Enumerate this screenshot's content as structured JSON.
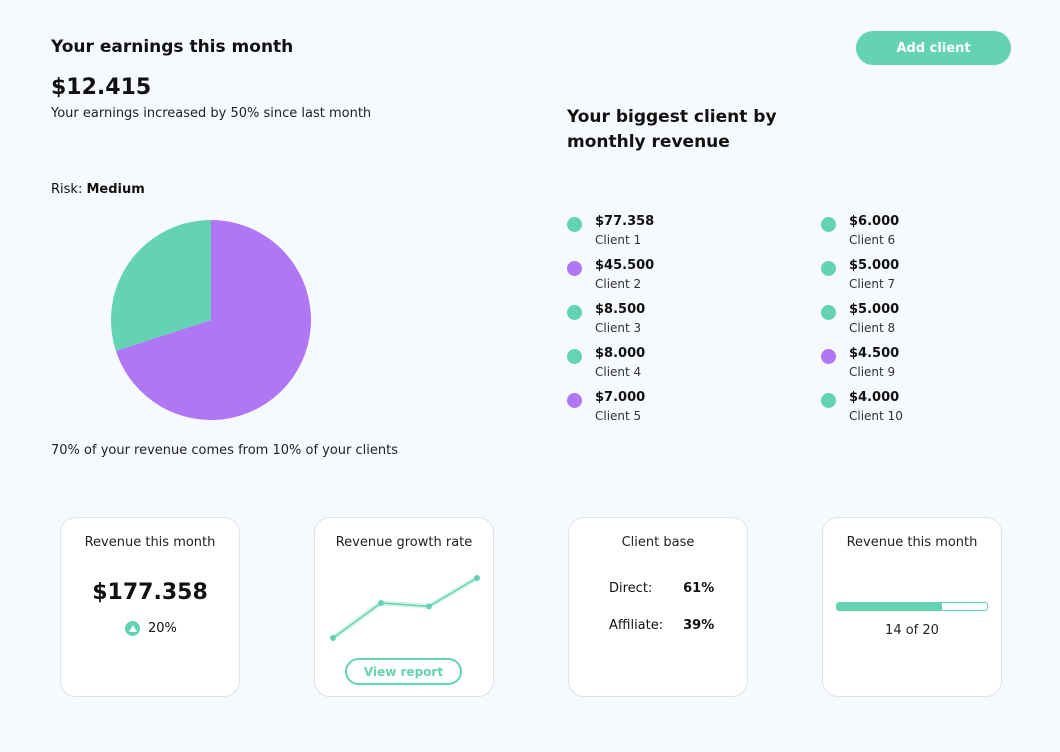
{
  "header": {
    "title": "Your earnings this month",
    "amount": "$12.415",
    "subtitle": "Your earnings increased by 50% since last month",
    "add_client_label": "Add client"
  },
  "risk": {
    "label": "Risk:",
    "value": "Medium"
  },
  "chart_data": {
    "type": "pie",
    "values": [
      70,
      30
    ],
    "colors": [
      "#b077f5",
      "#63d3b3"
    ],
    "caption": "70% of your revenue comes from 10% of your clients"
  },
  "clients": {
    "title": "Your biggest client by monthly revenue",
    "items": [
      {
        "amount": "$77.358",
        "name": "Client 1",
        "color": "#63d3b3"
      },
      {
        "amount": "$45.500",
        "name": "Client 2",
        "color": "#b077f5"
      },
      {
        "amount": "$8.500",
        "name": "Client 3",
        "color": "#63d3b3"
      },
      {
        "amount": "$8.000",
        "name": "Client 4",
        "color": "#63d3b3"
      },
      {
        "amount": "$7.000",
        "name": "Client 5",
        "color": "#b077f5"
      },
      {
        "amount": "$6.000",
        "name": "Client 6",
        "color": "#63d3b3"
      },
      {
        "amount": "$5.000",
        "name": "Client 7",
        "color": "#63d3b3"
      },
      {
        "amount": "$5.000",
        "name": "Client 8",
        "color": "#63d3b3"
      },
      {
        "amount": "$4.500",
        "name": "Client 9",
        "color": "#b077f5"
      },
      {
        "amount": "$4.000",
        "name": "Client 10",
        "color": "#63d3b3"
      }
    ]
  },
  "cards": {
    "revenue": {
      "title": "Revenue this month",
      "value": "$177.358",
      "change": "20%",
      "change_icon": "arrow-up-icon"
    },
    "growth": {
      "title": "Revenue growth rate",
      "trend": [
        1,
        3.1,
        2.9,
        4.6
      ],
      "button_label": "View report"
    },
    "base": {
      "title": "Client base",
      "direct_label": "Direct:",
      "direct_value": "61%",
      "affiliate_label": "Affiliate:",
      "affiliate_value": "39%"
    },
    "progress": {
      "title": "Revenue this month",
      "fraction": 0.7,
      "text": "14 of 20"
    }
  },
  "colors": {
    "accent": "#63d3b3",
    "purple": "#b077f5"
  }
}
